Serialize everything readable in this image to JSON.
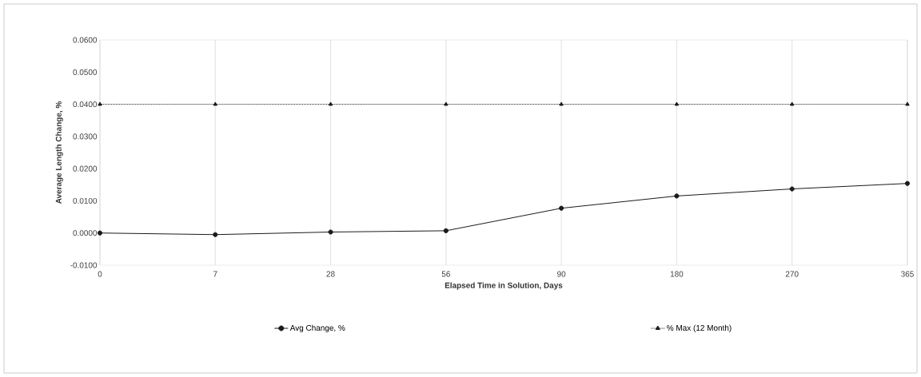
{
  "chart_data": {
    "type": "line",
    "xlabel": "Elapsed Time in Solution, Days",
    "ylabel": "Average Length Change, %",
    "categories": [
      "0",
      "7",
      "28",
      "56",
      "90",
      "180",
      "270",
      "365"
    ],
    "series": [
      {
        "name": "Avg Change, %",
        "color": "#1a1a1a",
        "marker": "circle",
        "line_style": "solid",
        "values": [
          0.0,
          -0.0005,
          0.0003,
          0.0007,
          0.0077,
          0.0115,
          0.0137,
          0.0154
        ]
      },
      {
        "name": "% Max (12 Month)",
        "color": "#1a1a1a",
        "marker": "triangle",
        "line_style": "dotted",
        "values": [
          0.04,
          0.04,
          0.04,
          0.04,
          0.04,
          0.04,
          0.04,
          0.04
        ]
      }
    ],
    "ylim": [
      -0.01,
      0.06
    ],
    "yticks": [
      {
        "value": -0.01,
        "label": "-0.0100"
      },
      {
        "value": 0.0,
        "label": "0.0000"
      },
      {
        "value": 0.01,
        "label": "0.0100"
      },
      {
        "value": 0.02,
        "label": "0.0200"
      },
      {
        "value": 0.03,
        "label": "0.0300"
      },
      {
        "value": 0.04,
        "label": "0.0400"
      },
      {
        "value": 0.05,
        "label": "0.0500"
      },
      {
        "value": 0.06,
        "label": "0.0600"
      }
    ],
    "grid": "x",
    "legend": "bottom"
  }
}
